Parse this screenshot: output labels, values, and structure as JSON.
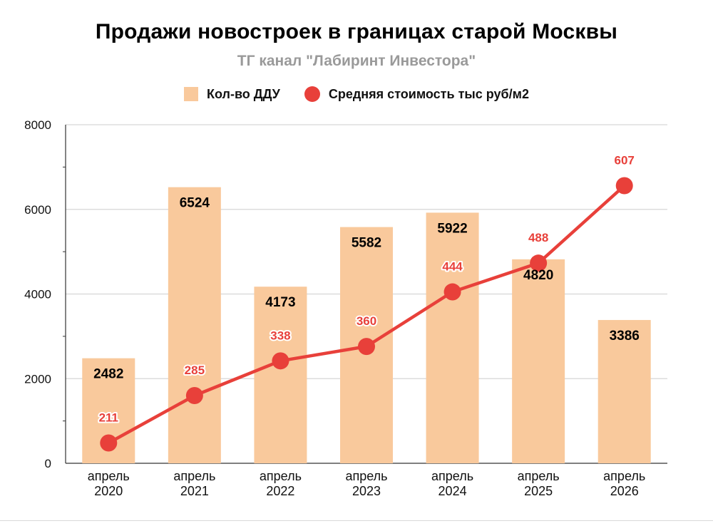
{
  "header": {
    "title": "Продажи новостроек в границах старой Москвы",
    "subtitle": "ТГ канал \"Лабиринт Инвестора\""
  },
  "legend": {
    "bars_label": "Кол-во ДДУ",
    "line_label": "Средняя стоимость тыс руб/м2"
  },
  "colors": {
    "bar": "#f9c99c",
    "line": "#e8403a",
    "grid": "#d6d6d6",
    "axis": "#333333"
  },
  "chart_data": {
    "type": "bar",
    "title": "Продажи новостроек в границах старой Москвы",
    "subtitle": "ТГ канал \"Лабиринт Инвестора\"",
    "categories": [
      [
        "апрель",
        "2020"
      ],
      [
        "апрель",
        "2021"
      ],
      [
        "апрель",
        "2022"
      ],
      [
        "апрель",
        "2023"
      ],
      [
        "апрель",
        "2024"
      ],
      [
        "апрель",
        "2025"
      ],
      [
        "апрель",
        "2026"
      ]
    ],
    "ylim": [
      0,
      8000
    ],
    "yticks": [
      0,
      2000,
      4000,
      6000,
      8000
    ],
    "grid": true,
    "legend_position": "top-center",
    "series": [
      {
        "name": "Кол-во ДДУ",
        "type": "bar",
        "values": [
          2482,
          6524,
          4173,
          5582,
          5922,
          4820,
          3386
        ],
        "labels": [
          "2482",
          "6524",
          "4173",
          "5582",
          "5922",
          "4820",
          "3386"
        ]
      },
      {
        "name": "Средняя стоимость тыс руб/м2",
        "type": "line",
        "values": [
          211,
          285,
          338,
          360,
          444,
          488,
          607
        ],
        "labels": [
          "211",
          "285",
          "338",
          "360",
          "444",
          "488",
          "607"
        ],
        "plotted_on_left_axis": [
          480,
          1600,
          2420,
          2760,
          4050,
          4730,
          6560
        ]
      }
    ]
  }
}
